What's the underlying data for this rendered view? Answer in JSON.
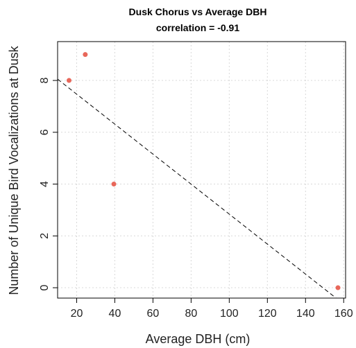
{
  "chart_data": {
    "type": "scatter",
    "title": "Dusk Chorus vs Average DBH",
    "subtitle": "correlation = -0.91",
    "xlabel": "Average DBH (cm)",
    "ylabel": "Number of Unique Bird Vocalizations at Dusk",
    "xlim": [
      10,
      161
    ],
    "ylim": [
      -0.4,
      9.5
    ],
    "x_ticks": [
      20,
      40,
      60,
      80,
      100,
      120,
      140,
      160
    ],
    "y_ticks": [
      0,
      2,
      4,
      6,
      8
    ],
    "grid": true,
    "points": [
      {
        "x": 16,
        "y": 8
      },
      {
        "x": 24.5,
        "y": 9
      },
      {
        "x": 39.5,
        "y": 4
      },
      {
        "x": 157,
        "y": 0
      }
    ],
    "trendline": {
      "style": "dashed",
      "x": [
        10,
        156
      ],
      "y": [
        8.05,
        -0.4
      ]
    },
    "point_color": "#e8675a"
  }
}
